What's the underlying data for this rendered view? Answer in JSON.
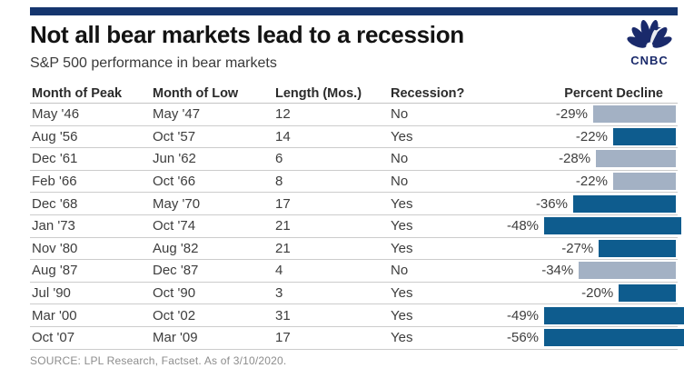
{
  "header": {
    "logo_text": "CNBC"
  },
  "chart_data": {
    "type": "table",
    "title": "Not all bear markets lead to a recession",
    "subtitle": "S&P 500 performance in bear markets",
    "columns": [
      "Month of Peak",
      "Month of Low",
      "Length (Mos.)",
      "Recession?",
      "Percent Decline"
    ],
    "rows": [
      {
        "month_of_peak": "May '46",
        "month_of_low": "May '47",
        "length_mos": "12",
        "recession": "No",
        "percent_decline": -29,
        "percent_decline_label": "-29%"
      },
      {
        "month_of_peak": "Aug '56",
        "month_of_low": "Oct '57",
        "length_mos": "14",
        "recession": "Yes",
        "percent_decline": -22,
        "percent_decline_label": "-22%"
      },
      {
        "month_of_peak": "Dec '61",
        "month_of_low": "Jun '62",
        "length_mos": "6",
        "recession": "No",
        "percent_decline": -28,
        "percent_decline_label": "-28%"
      },
      {
        "month_of_peak": "Feb '66",
        "month_of_low": "Oct '66",
        "length_mos": "8",
        "recession": "No",
        "percent_decline": -22,
        "percent_decline_label": "-22%"
      },
      {
        "month_of_peak": "Dec '68",
        "month_of_low": "May '70",
        "length_mos": "17",
        "recession": "Yes",
        "percent_decline": -36,
        "percent_decline_label": "-36%"
      },
      {
        "month_of_peak": "Jan '73",
        "month_of_low": "Oct '74",
        "length_mos": "21",
        "recession": "Yes",
        "percent_decline": -48,
        "percent_decline_label": "-48%"
      },
      {
        "month_of_peak": "Nov '80",
        "month_of_low": "Aug '82",
        "length_mos": "21",
        "recession": "Yes",
        "percent_decline": -27,
        "percent_decline_label": "-27%"
      },
      {
        "month_of_peak": "Aug '87",
        "month_of_low": "Dec '87",
        "length_mos": "4",
        "recession": "No",
        "percent_decline": -34,
        "percent_decline_label": "-34%"
      },
      {
        "month_of_peak": "Jul '90",
        "month_of_low": "Oct '90",
        "length_mos": "3",
        "recession": "Yes",
        "percent_decline": -20,
        "percent_decline_label": "-20%"
      },
      {
        "month_of_peak": "Mar '00",
        "month_of_low": "Oct '02",
        "length_mos": "31",
        "recession": "Yes",
        "percent_decline": -49,
        "percent_decline_label": "-49%"
      },
      {
        "month_of_peak": "Oct '07",
        "month_of_low": "Mar '09",
        "length_mos": "17",
        "recession": "Yes",
        "percent_decline": -56,
        "percent_decline_label": "-56%"
      }
    ],
    "legend_position": "none",
    "grid": "row-separators-only"
  },
  "source": "SOURCE: LPL Research, Factset. As of 3/10/2020.",
  "colors": {
    "top_bar": "#15356e",
    "logo": "#1a2a6b",
    "bar_recession_yes": "#0e5c8e",
    "bar_recession_no": "#a3b1c4"
  }
}
